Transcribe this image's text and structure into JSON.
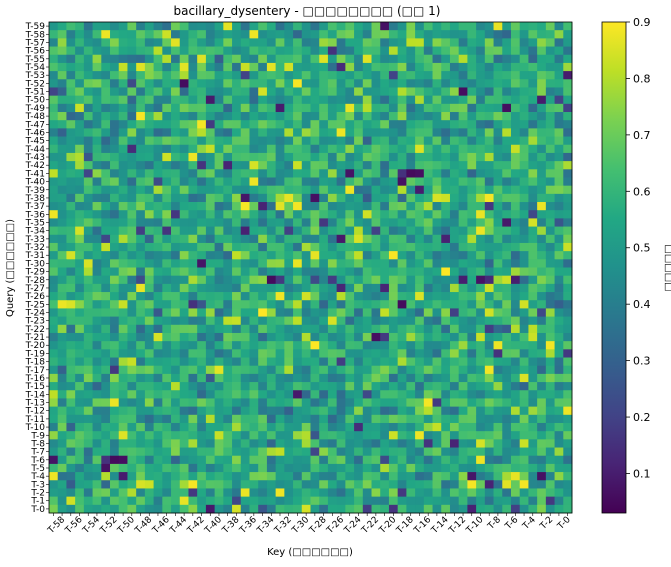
{
  "chart_data": {
    "type": "heatmap",
    "title": "bacillary_dysentery - □□□□□□□□ (□□ 1)",
    "xlabel": "Key (□□□□□□)",
    "ylabel": "Query (□□□□□□)",
    "colorbar_label": "□□□□□",
    "colormap": "viridis",
    "clim": [
      0.03,
      0.9
    ],
    "colorbar_ticks": [
      "0.1",
      "0.2",
      "0.3",
      "0.4",
      "0.5",
      "0.6",
      "0.7",
      "0.8",
      "0.9"
    ],
    "rows": [
      "T-59",
      "T-58",
      "T-57",
      "T-56",
      "T-55",
      "T-54",
      "T-53",
      "T-52",
      "T-51",
      "T-50",
      "T-49",
      "T-48",
      "T-47",
      "T-46",
      "T-45",
      "T-44",
      "T-43",
      "T-42",
      "T-41",
      "T-40",
      "T-39",
      "T-38",
      "T-37",
      "T-36",
      "T-35",
      "T-34",
      "T-33",
      "T-32",
      "T-31",
      "T-30",
      "T-29",
      "T-28",
      "T-27",
      "T-26",
      "T-25",
      "T-24",
      "T-23",
      "T-22",
      "T-21",
      "T-20",
      "T-19",
      "T-18",
      "T-17",
      "T-16",
      "T-15",
      "T-14",
      "T-13",
      "T-12",
      "T-11",
      "T-10",
      "T-9",
      "T-8",
      "T-7",
      "T-6",
      "T-5",
      "T-4",
      "T-3",
      "T-2",
      "T-1",
      "T-0"
    ],
    "columns": [
      "T-59",
      "T-58",
      "T-57",
      "T-56",
      "T-55",
      "T-54",
      "T-53",
      "T-52",
      "T-51",
      "T-50",
      "T-49",
      "T-48",
      "T-47",
      "T-46",
      "T-45",
      "T-44",
      "T-43",
      "T-42",
      "T-41",
      "T-40",
      "T-39",
      "T-38",
      "T-37",
      "T-36",
      "T-35",
      "T-34",
      "T-33",
      "T-32",
      "T-31",
      "T-30",
      "T-29",
      "T-28",
      "T-27",
      "T-26",
      "T-25",
      "T-24",
      "T-23",
      "T-22",
      "T-21",
      "T-20",
      "T-19",
      "T-18",
      "T-17",
      "T-16",
      "T-15",
      "T-14",
      "T-13",
      "T-12",
      "T-11",
      "T-10",
      "T-9",
      "T-8",
      "T-7",
      "T-6",
      "T-5",
      "T-4",
      "T-3",
      "T-2",
      "T-1",
      "T-0"
    ],
    "x_tick_labels": [
      "T-59",
      "T-58",
      "T-57",
      "T-56",
      "T-55",
      "T-54",
      "T-53",
      "T-52",
      "T-51",
      "T-50",
      "T-49",
      "T-48",
      "T-47",
      "T-46",
      "T-45",
      "T-44",
      "T-43",
      "T-42",
      "T-41",
      "T-40",
      "T-39",
      "T-38",
      "T-37",
      "T-36",
      "T-35",
      "T-34",
      "T-33",
      "T-32",
      "T-31",
      "T-30",
      "T-29",
      "T-28",
      "T-27",
      "T-26",
      "T-25",
      "T-24",
      "T-23",
      "T-22",
      "T-21",
      "T-20",
      "T-19",
      "T-18",
      "T-17",
      "T-16",
      "T-15",
      "T-14",
      "T-13",
      "T-12",
      "T-11",
      "T-10",
      "T-9",
      "T-8",
      "T-7",
      "T-6",
      "T-5",
      "T-4",
      "T-3",
      "T-2",
      "T-1",
      "T-0"
    ],
    "y_tick_labels": [
      "T-59",
      "T-58",
      "T-57",
      "T-56",
      "T-55",
      "T-54",
      "T-53",
      "T-52",
      "T-51",
      "T-50",
      "T-49",
      "T-48",
      "T-47",
      "T-46",
      "T-45",
      "T-44",
      "T-43",
      "T-42",
      "T-41",
      "T-40",
      "T-39",
      "T-38",
      "T-37",
      "T-36",
      "T-35",
      "T-34",
      "T-33",
      "T-32",
      "T-31",
      "T-30",
      "T-29",
      "T-28",
      "T-27",
      "T-26",
      "T-25",
      "T-24",
      "T-23",
      "T-22",
      "T-21",
      "T-20",
      "T-19",
      "T-18",
      "T-17",
      "T-16",
      "T-15",
      "T-14",
      "T-13",
      "T-12",
      "T-11",
      "T-10",
      "T-9",
      "T-8",
      "T-7",
      "T-6",
      "T-5",
      "T-4",
      "T-3",
      "T-2",
      "T-1",
      "T-0"
    ],
    "value_summary": {
      "min": 0.03,
      "max": 0.9,
      "typical": 0.55
    },
    "grid": false
  }
}
